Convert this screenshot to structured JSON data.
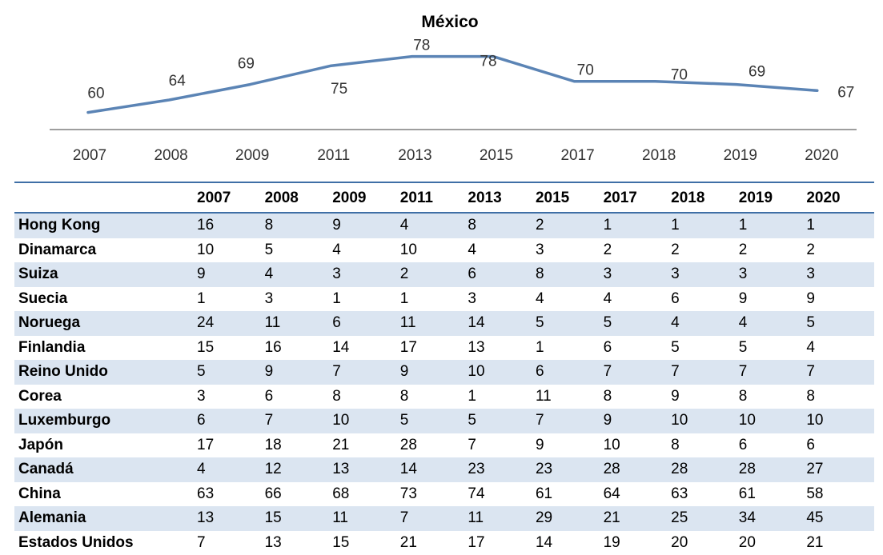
{
  "chart_data": {
    "type": "line",
    "title": "México",
    "categories": [
      "2007",
      "2008",
      "2009",
      "2011",
      "2013",
      "2015",
      "2017",
      "2018",
      "2019",
      "2020"
    ],
    "series": [
      {
        "values": [
          60,
          64,
          69,
          75,
          78,
          78,
          70,
          70,
          69,
          67
        ]
      }
    ],
    "ylim": [
      55,
      82
    ],
    "grid": false,
    "line_color": "#5b84b5"
  },
  "table": {
    "columns": [
      "2007",
      "2008",
      "2009",
      "2011",
      "2013",
      "2015",
      "2017",
      "2018",
      "2019",
      "2020"
    ],
    "rows": [
      {
        "country": "Hong Kong",
        "values": [
          "16",
          "8",
          "9",
          "4",
          "8",
          "2",
          "1",
          "1",
          "1",
          "1"
        ]
      },
      {
        "country": "Dinamarca",
        "values": [
          "10",
          "5",
          "4",
          "10",
          "4",
          "3",
          "2",
          "2",
          "2",
          "2"
        ]
      },
      {
        "country": "Suiza",
        "values": [
          "9",
          "4",
          "3",
          "2",
          "6",
          "8",
          "3",
          "3",
          "3",
          "3"
        ]
      },
      {
        "country": "Suecia",
        "values": [
          "1",
          "3",
          "1",
          "1",
          "3",
          "4",
          "4",
          "6",
          "9",
          "9"
        ]
      },
      {
        "country": "Noruega",
        "values": [
          "24",
          "11",
          "6",
          "11",
          "14",
          "5",
          "5",
          "4",
          "4",
          "5"
        ]
      },
      {
        "country": "Finlandia",
        "values": [
          "15",
          "16",
          "14",
          "17",
          "13",
          "1",
          "6",
          "5",
          "5",
          "4"
        ]
      },
      {
        "country": "Reino Unido",
        "values": [
          "5",
          "9",
          "7",
          "9",
          "10",
          "6",
          "7",
          "7",
          "7",
          "7"
        ]
      },
      {
        "country": "Corea",
        "values": [
          "3",
          "6",
          "8",
          "8",
          "1",
          "11",
          "8",
          "9",
          "8",
          "8"
        ]
      },
      {
        "country": "Luxemburgo",
        "values": [
          "6",
          "7",
          "10",
          "5",
          "5",
          "7",
          "9",
          "10",
          "10",
          "10"
        ]
      },
      {
        "country": "Japón",
        "values": [
          "17",
          "18",
          "21",
          "28",
          "7",
          "9",
          "10",
          "8",
          "6",
          "6"
        ]
      },
      {
        "country": "Canadá",
        "values": [
          "4",
          "12",
          "13",
          "14",
          "23",
          "23",
          "28",
          "28",
          "28",
          "27"
        ]
      },
      {
        "country": "China",
        "values": [
          "63",
          "66",
          "68",
          "73",
          "74",
          "61",
          "64",
          "63",
          "61",
          "58"
        ]
      },
      {
        "country": "Alemania",
        "values": [
          "13",
          "15",
          "11",
          "7",
          "11",
          "29",
          "21",
          "25",
          "34",
          "45"
        ]
      },
      {
        "country": "Estados Unidos",
        "values": [
          "7",
          "13",
          "15",
          "21",
          "17",
          "14",
          "19",
          "20",
          "20",
          "21"
        ]
      }
    ],
    "stripe_color": "#dbe5f1",
    "rule_color": "#3f6fa6"
  }
}
